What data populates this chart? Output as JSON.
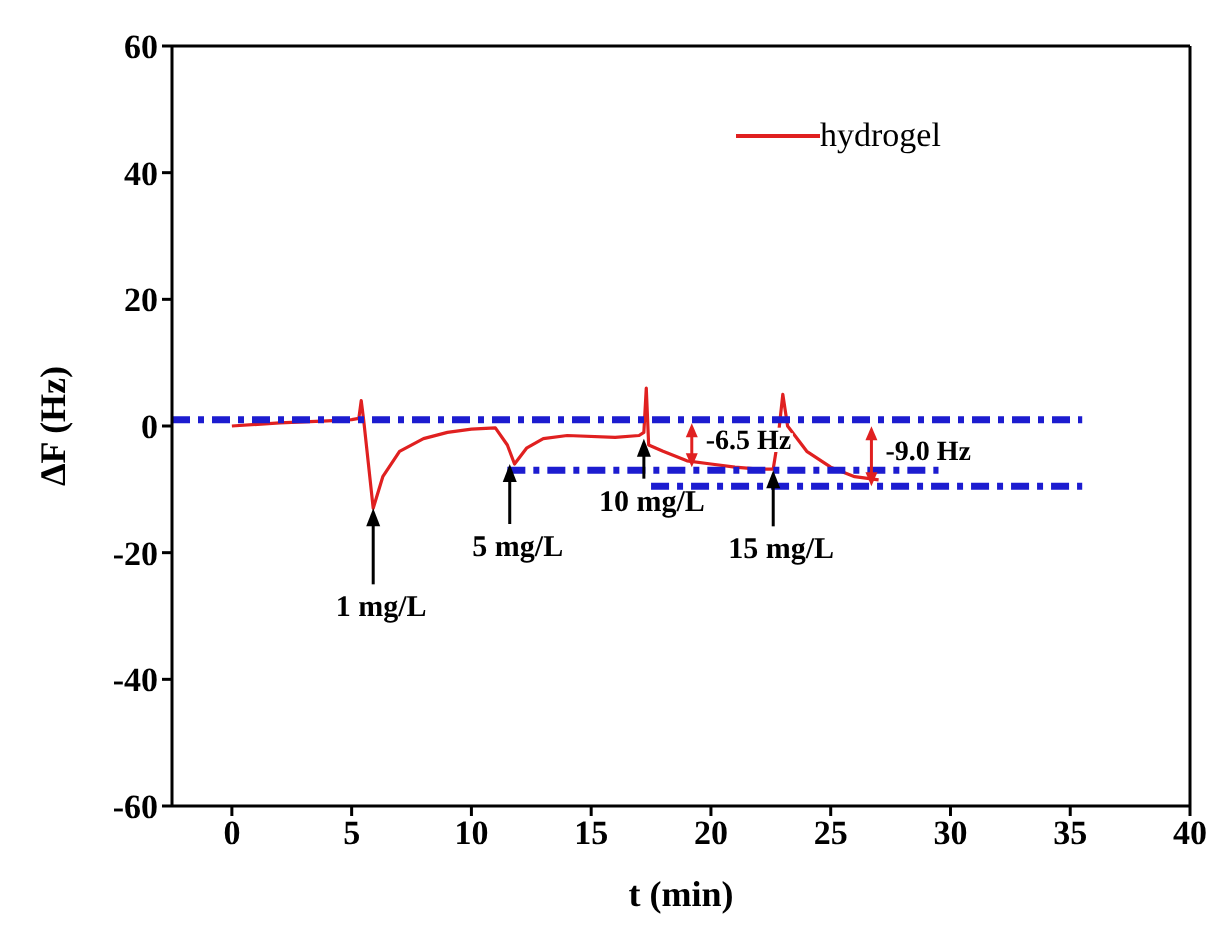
{
  "chart_data": {
    "type": "line",
    "xlabel": "t (min)",
    "ylabel": "ΔF (Hz)",
    "xlim": [
      -2.5,
      40
    ],
    "xticks": [
      0,
      5,
      10,
      15,
      20,
      25,
      30,
      35,
      40
    ],
    "ylim": [
      -60,
      60
    ],
    "yticks": [
      -60,
      -40,
      -20,
      0,
      20,
      40,
      60
    ],
    "grid": false,
    "legend": "top right",
    "series": [
      {
        "name": "hydrogel",
        "color": "#e02020",
        "line_style": "solid",
        "x": [
          0,
          2,
          4,
          5,
          5.3,
          5.4,
          5.5,
          5.9,
          6.3,
          7,
          8,
          9,
          10,
          11,
          11.5,
          11.8,
          12.3,
          13,
          14,
          16,
          17,
          17.2,
          17.3,
          17.4,
          18,
          19,
          20,
          21,
          22,
          22.6,
          22.8,
          23,
          23.2,
          24,
          25,
          26,
          27
        ],
        "values": [
          0,
          0.5,
          0.8,
          1,
          1.2,
          4,
          1,
          -13,
          -8,
          -4,
          -2,
          -1,
          -0.5,
          -0.3,
          -3,
          -6,
          -3.5,
          -2,
          -1.5,
          -1.8,
          -1.5,
          -1,
          6,
          -3,
          -4,
          -5.5,
          -6,
          -6.5,
          -6.8,
          -6.8,
          -2,
          5,
          0,
          -4,
          -6.5,
          -8,
          -8.5
        ]
      },
      {
        "color": "#1c1cd0",
        "line_style": "dashed",
        "x": [
          -2.5,
          35.5
        ],
        "values": [
          1,
          1
        ]
      },
      {
        "color": "#1c1cd0",
        "line_style": "dashed",
        "x": [
          11.5,
          29.5
        ],
        "values": [
          -7,
          -7
        ]
      },
      {
        "color": "#1c1cd0",
        "line_style": "dashed",
        "x": [
          17.5,
          35.5
        ],
        "values": [
          -9.5,
          -9.5
        ]
      }
    ],
    "annotations": [
      {
        "text": "1 mg/L",
        "x": 5.9,
        "y": -13
      },
      {
        "text": "5 mg/L",
        "x": 11.6,
        "y": -6
      },
      {
        "text": "10 mg/L",
        "x": 17.2,
        "y": -2
      },
      {
        "text": "15 mg/L",
        "x": 22.6,
        "y": -7
      },
      {
        "text": "-6.5 Hz",
        "x": 19.2,
        "y": -6.5
      },
      {
        "text": "-9.0 Hz",
        "x": 26.7,
        "y": -9.5
      }
    ]
  }
}
